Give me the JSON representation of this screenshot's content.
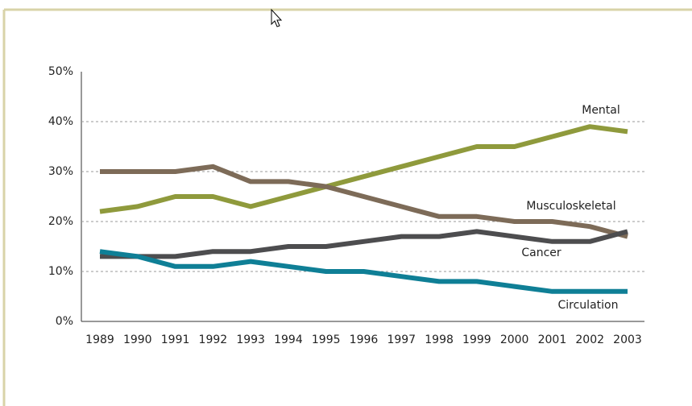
{
  "chart_data": {
    "type": "line",
    "categories": [
      "1989",
      "1990",
      "1991",
      "1992",
      "1993",
      "1994",
      "1995",
      "1996",
      "1997",
      "1998",
      "1999",
      "2000",
      "2001",
      "2002",
      "2003"
    ],
    "series": [
      {
        "name": "Mental",
        "color": "#8f9a3c",
        "values": [
          22,
          23,
          25,
          25,
          23,
          25,
          27,
          29,
          31,
          33,
          35,
          35,
          37,
          39,
          38
        ]
      },
      {
        "name": "Musculoskeletal",
        "color": "#7d6b58",
        "values": [
          30,
          30,
          30,
          31,
          28,
          28,
          27,
          25,
          23,
          21,
          21,
          20,
          20,
          19,
          17
        ]
      },
      {
        "name": "Cancer",
        "color": "#4d4d4f",
        "values": [
          13,
          13,
          13,
          14,
          14,
          15,
          15,
          16,
          17,
          17,
          18,
          17,
          16,
          16,
          18
        ]
      },
      {
        "name": "Circulation",
        "color": "#0f7f96",
        "values": [
          14,
          13,
          11,
          11,
          12,
          11,
          10,
          10,
          9,
          8,
          8,
          7,
          6,
          6,
          6
        ]
      }
    ],
    "ylim": [
      0,
      50
    ],
    "yticks": [
      {
        "value": 0,
        "label": "0%"
      },
      {
        "value": 10,
        "label": "10%"
      },
      {
        "value": 20,
        "label": "20%"
      },
      {
        "value": 30,
        "label": "30%"
      },
      {
        "value": 40,
        "label": "40%"
      },
      {
        "value": 50,
        "label": "50%"
      }
    ],
    "grid": true
  }
}
